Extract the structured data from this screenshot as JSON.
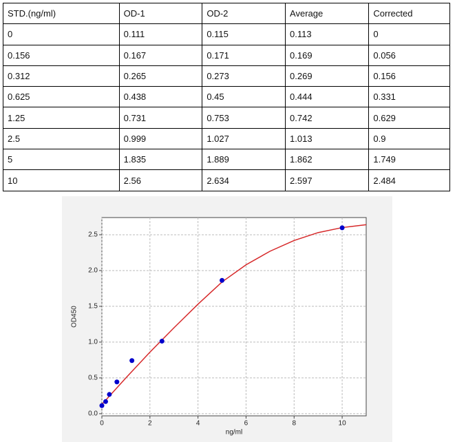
{
  "table": {
    "header": [
      "STD.(ng/ml)",
      "OD-1",
      "OD-2",
      "Average",
      "Corrected"
    ],
    "rows": [
      [
        "0",
        "0.111",
        "0.115",
        "0.113",
        "0"
      ],
      [
        "0.156",
        "0.167",
        "0.171",
        "0.169",
        "0.056"
      ],
      [
        "0.312",
        "0.265",
        "0.273",
        "0.269",
        "0.156"
      ],
      [
        "0.625",
        "0.438",
        "0.45",
        "0.444",
        "0.331"
      ],
      [
        "1.25",
        "0.731",
        "0.753",
        "0.742",
        "0.629"
      ],
      [
        "2.5",
        "0.999",
        "1.027",
        "1.013",
        "0.9"
      ],
      [
        "5",
        "1.835",
        "1.889",
        "1.862",
        "1.749"
      ],
      [
        "10",
        "2.56",
        "2.634",
        "2.597",
        "2.484"
      ]
    ]
  },
  "chart_data": {
    "type": "scatter",
    "x_label": "ng/ml",
    "y_label": "OD450",
    "points": {
      "x": [
        0,
        0.156,
        0.312,
        0.625,
        1.25,
        2.5,
        5,
        10
      ],
      "values": [
        0.113,
        0.169,
        0.269,
        0.444,
        0.742,
        1.013,
        1.862,
        2.597
      ],
      "color": "#0000cc"
    },
    "fit": {
      "x": [
        0,
        1,
        2,
        3,
        4,
        5,
        6,
        7,
        8,
        9,
        10,
        11
      ],
      "values": [
        0.13,
        0.5,
        0.86,
        1.2,
        1.53,
        1.84,
        2.08,
        2.27,
        2.42,
        2.53,
        2.6,
        2.64
      ],
      "color": "#d62728"
    },
    "xlim": [
      0,
      11
    ],
    "ylim": [
      -0.03,
      2.74
    ],
    "xticks": [
      0,
      2,
      4,
      6,
      8,
      10
    ],
    "yticks": [
      {
        "value": 0,
        "label": "0.0"
      },
      0.5,
      {
        "value": 1,
        "label": "1.0"
      },
      1.5,
      {
        "value": 2,
        "label": "2.0"
      },
      2.5
    ],
    "grid": true
  }
}
